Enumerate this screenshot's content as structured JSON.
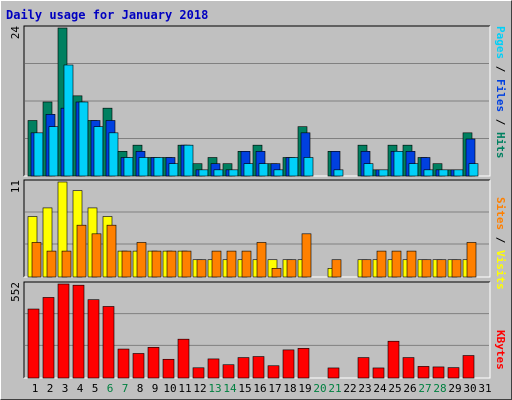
{
  "title": "Daily usage for January 2018",
  "colors": {
    "background": "#c0c0c0",
    "title": "#0000c0",
    "grid": "#808080",
    "hits": "#008060",
    "files": "#0040e0",
    "pages": "#00d0f8",
    "visits": "#ffff00",
    "sites": "#ff8000",
    "kbytes": "#ff0000",
    "weekend_day": "#008040"
  },
  "chart_data": [
    {
      "type": "bar",
      "panel": "hits-files-pages",
      "categories": [
        "1",
        "2",
        "3",
        "4",
        "5",
        "6",
        "7",
        "8",
        "9",
        "10",
        "11",
        "12",
        "13",
        "14",
        "15",
        "16",
        "17",
        "18",
        "19",
        "20",
        "21",
        "22",
        "23",
        "24",
        "25",
        "26",
        "27",
        "28",
        "29",
        "30",
        "31"
      ],
      "series": [
        {
          "name": "Hits",
          "values": [
            9,
            12,
            24,
            13,
            9,
            11,
            4,
            5,
            3,
            3,
            5,
            2,
            3,
            2,
            4,
            5,
            2,
            3,
            8,
            0,
            4,
            0,
            5,
            1,
            5,
            5,
            3,
            2,
            1,
            7,
            0
          ]
        },
        {
          "name": "Files",
          "values": [
            7,
            10,
            11,
            12,
            9,
            9,
            3,
            4,
            3,
            3,
            5,
            1,
            2,
            1,
            4,
            4,
            2,
            3,
            7,
            0,
            4,
            0,
            4,
            1,
            4,
            4,
            3,
            1,
            1,
            6,
            0
          ]
        },
        {
          "name": "Pages",
          "values": [
            7,
            8,
            18,
            12,
            8,
            7,
            3,
            3,
            3,
            2,
            5,
            1,
            1,
            1,
            2,
            2,
            1,
            3,
            3,
            0,
            1,
            0,
            2,
            1,
            4,
            2,
            1,
            1,
            1,
            2,
            0
          ]
        }
      ],
      "ylim": [
        0,
        24
      ],
      "max_label": "24",
      "legend": [
        {
          "text": "Pages",
          "series": "Pages"
        },
        {
          "text": " / ",
          "series": null
        },
        {
          "text": "Files",
          "series": "Files"
        },
        {
          "text": " / ",
          "series": null
        },
        {
          "text": "Hits",
          "series": "Hits"
        }
      ]
    },
    {
      "type": "bar",
      "panel": "visits-sites",
      "categories": [
        "1",
        "2",
        "3",
        "4",
        "5",
        "6",
        "7",
        "8",
        "9",
        "10",
        "11",
        "12",
        "13",
        "14",
        "15",
        "16",
        "17",
        "18",
        "19",
        "20",
        "21",
        "22",
        "23",
        "24",
        "25",
        "26",
        "27",
        "28",
        "29",
        "30",
        "31"
      ],
      "series": [
        {
          "name": "Visits",
          "values": [
            7,
            8,
            11,
            10,
            8,
            7,
            3,
            3,
            3,
            3,
            3,
            2,
            2,
            2,
            2,
            2,
            2,
            2,
            2,
            0,
            1,
            0,
            2,
            2,
            2,
            2,
            2,
            2,
            2,
            2,
            0
          ]
        },
        {
          "name": "Sites",
          "values": [
            4,
            3,
            3,
            6,
            5,
            6,
            3,
            4,
            3,
            3,
            3,
            2,
            3,
            3,
            3,
            4,
            1,
            2,
            5,
            0,
            2,
            0,
            2,
            3,
            3,
            3,
            2,
            2,
            2,
            4,
            0
          ]
        }
      ],
      "ylim": [
        0,
        11
      ],
      "max_label": "11",
      "legend": [
        {
          "text": "Sites",
          "series": "Sites"
        },
        {
          "text": " / ",
          "series": null
        },
        {
          "text": "Visits",
          "series": "Visits"
        }
      ]
    },
    {
      "type": "bar",
      "panel": "kbytes",
      "categories": [
        "1",
        "2",
        "3",
        "4",
        "5",
        "6",
        "7",
        "8",
        "9",
        "10",
        "11",
        "12",
        "13",
        "14",
        "15",
        "16",
        "17",
        "18",
        "19",
        "20",
        "21",
        "22",
        "23",
        "24",
        "25",
        "26",
        "27",
        "28",
        "29",
        "30",
        "31"
      ],
      "series": [
        {
          "name": "KBytes",
          "values": [
            405,
            473,
            552,
            545,
            460,
            420,
            170,
            144,
            180,
            110,
            228,
            60,
            112,
            78,
            120,
            126,
            72,
            165,
            174,
            0,
            59,
            0,
            120,
            59,
            216,
            120,
            68,
            65,
            61,
            132,
            0
          ]
        }
      ],
      "ylim": [
        0,
        552
      ],
      "max_label": "552",
      "legend": [
        {
          "text": "KBytes",
          "series": "KBytes"
        }
      ]
    }
  ],
  "x_labels": [
    {
      "text": "1",
      "weekend": false
    },
    {
      "text": "2",
      "weekend": false
    },
    {
      "text": "3",
      "weekend": false
    },
    {
      "text": "4",
      "weekend": false
    },
    {
      "text": "5",
      "weekend": false
    },
    {
      "text": "6",
      "weekend": true
    },
    {
      "text": "7",
      "weekend": true
    },
    {
      "text": "8",
      "weekend": false
    },
    {
      "text": "9",
      "weekend": false
    },
    {
      "text": "10",
      "weekend": false
    },
    {
      "text": "11",
      "weekend": false
    },
    {
      "text": "12",
      "weekend": false
    },
    {
      "text": "13",
      "weekend": true
    },
    {
      "text": "14",
      "weekend": true
    },
    {
      "text": "15",
      "weekend": false
    },
    {
      "text": "16",
      "weekend": false
    },
    {
      "text": "17",
      "weekend": false
    },
    {
      "text": "18",
      "weekend": false
    },
    {
      "text": "19",
      "weekend": false
    },
    {
      "text": "20",
      "weekend": true
    },
    {
      "text": "21",
      "weekend": true
    },
    {
      "text": "22",
      "weekend": false
    },
    {
      "text": "23",
      "weekend": false
    },
    {
      "text": "24",
      "weekend": false
    },
    {
      "text": "25",
      "weekend": false
    },
    {
      "text": "26",
      "weekend": false
    },
    {
      "text": "27",
      "weekend": true
    },
    {
      "text": "28",
      "weekend": true
    },
    {
      "text": "29",
      "weekend": false
    },
    {
      "text": "30",
      "weekend": false
    },
    {
      "text": "31",
      "weekend": false
    }
  ]
}
